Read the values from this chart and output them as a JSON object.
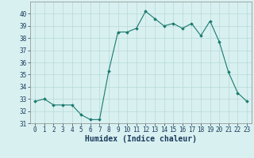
{
  "x": [
    0,
    1,
    2,
    3,
    4,
    5,
    6,
    7,
    8,
    9,
    10,
    11,
    12,
    13,
    14,
    15,
    16,
    17,
    18,
    19,
    20,
    21,
    22,
    23
  ],
  "y": [
    32.8,
    33.0,
    32.5,
    32.5,
    32.5,
    31.7,
    31.3,
    31.3,
    35.3,
    38.5,
    38.5,
    38.8,
    40.2,
    39.6,
    39.0,
    39.2,
    38.8,
    39.2,
    38.2,
    39.4,
    37.7,
    35.2,
    33.5,
    32.8
  ],
  "line_color": "#1a7a6e",
  "marker": "D",
  "marker_size": 1.8,
  "bg_color": "#d8f0f0",
  "grid_color": "#b8d8d8",
  "xlabel": "Humidex (Indice chaleur)",
  "ylim": [
    31,
    41
  ],
  "xlim": [
    -0.5,
    23.5
  ],
  "yticks": [
    31,
    32,
    33,
    34,
    35,
    36,
    37,
    38,
    39,
    40
  ],
  "xticks": [
    0,
    1,
    2,
    3,
    4,
    5,
    6,
    7,
    8,
    9,
    10,
    11,
    12,
    13,
    14,
    15,
    16,
    17,
    18,
    19,
    20,
    21,
    22,
    23
  ],
  "tick_fontsize": 5.5,
  "xlabel_fontsize": 7.0,
  "line_width": 0.8
}
